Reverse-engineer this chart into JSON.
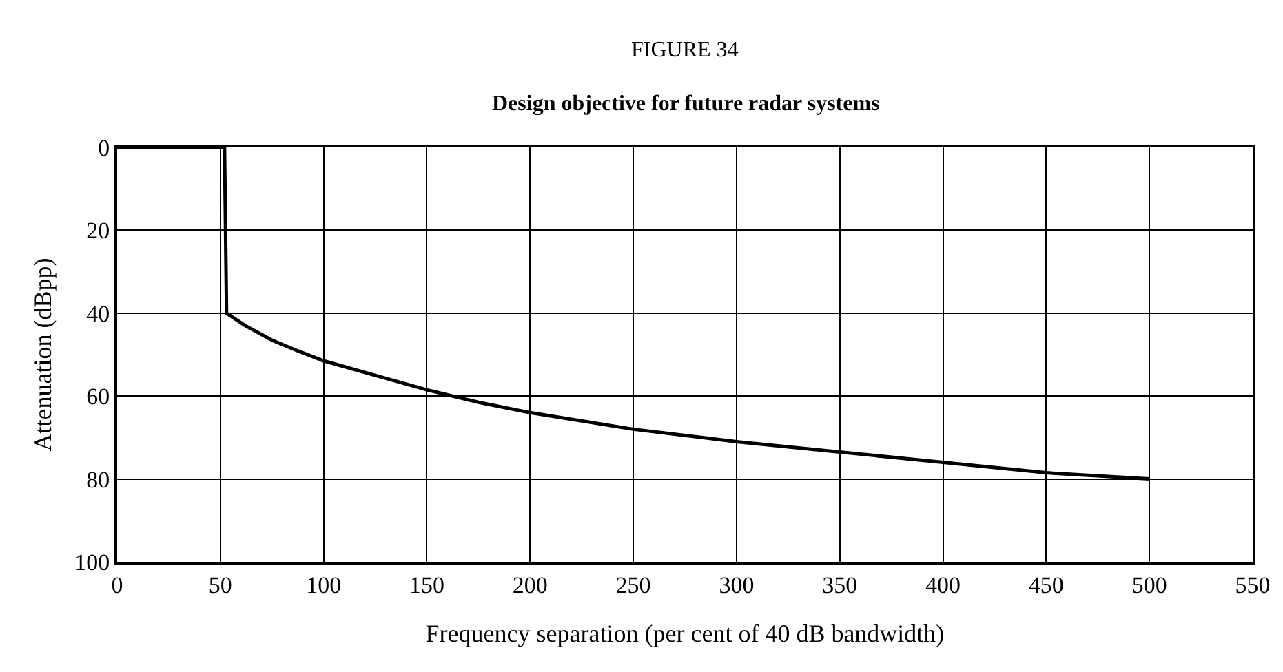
{
  "chart_data": {
    "type": "line",
    "title": "FIGURE 34",
    "subtitle": "Design objective for future radar systems",
    "xlabel": "Frequency separation (per cent of 40 dB bandwidth)",
    "ylabel": "Attenuation (dBpp)",
    "x": [
      0,
      52,
      53,
      62,
      75,
      87,
      100,
      125,
      150,
      175,
      200,
      250,
      300,
      350,
      400,
      450,
      500
    ],
    "series": [
      {
        "color": "#000000",
        "values": [
          0,
          0,
          40,
          43,
          46.5,
          49,
          51.5,
          55,
          58.5,
          61.5,
          64,
          68,
          71,
          73.5,
          76,
          78.5,
          80
        ]
      }
    ],
    "xlim": [
      0,
      550
    ],
    "xticks": [
      0,
      50,
      100,
      150,
      200,
      250,
      300,
      350,
      400,
      450,
      500,
      550
    ],
    "ylim": [
      100,
      0
    ],
    "yticks": [
      0,
      20,
      40,
      60,
      80,
      100
    ],
    "grid": true,
    "marker": "none",
    "line_style": "solid"
  }
}
